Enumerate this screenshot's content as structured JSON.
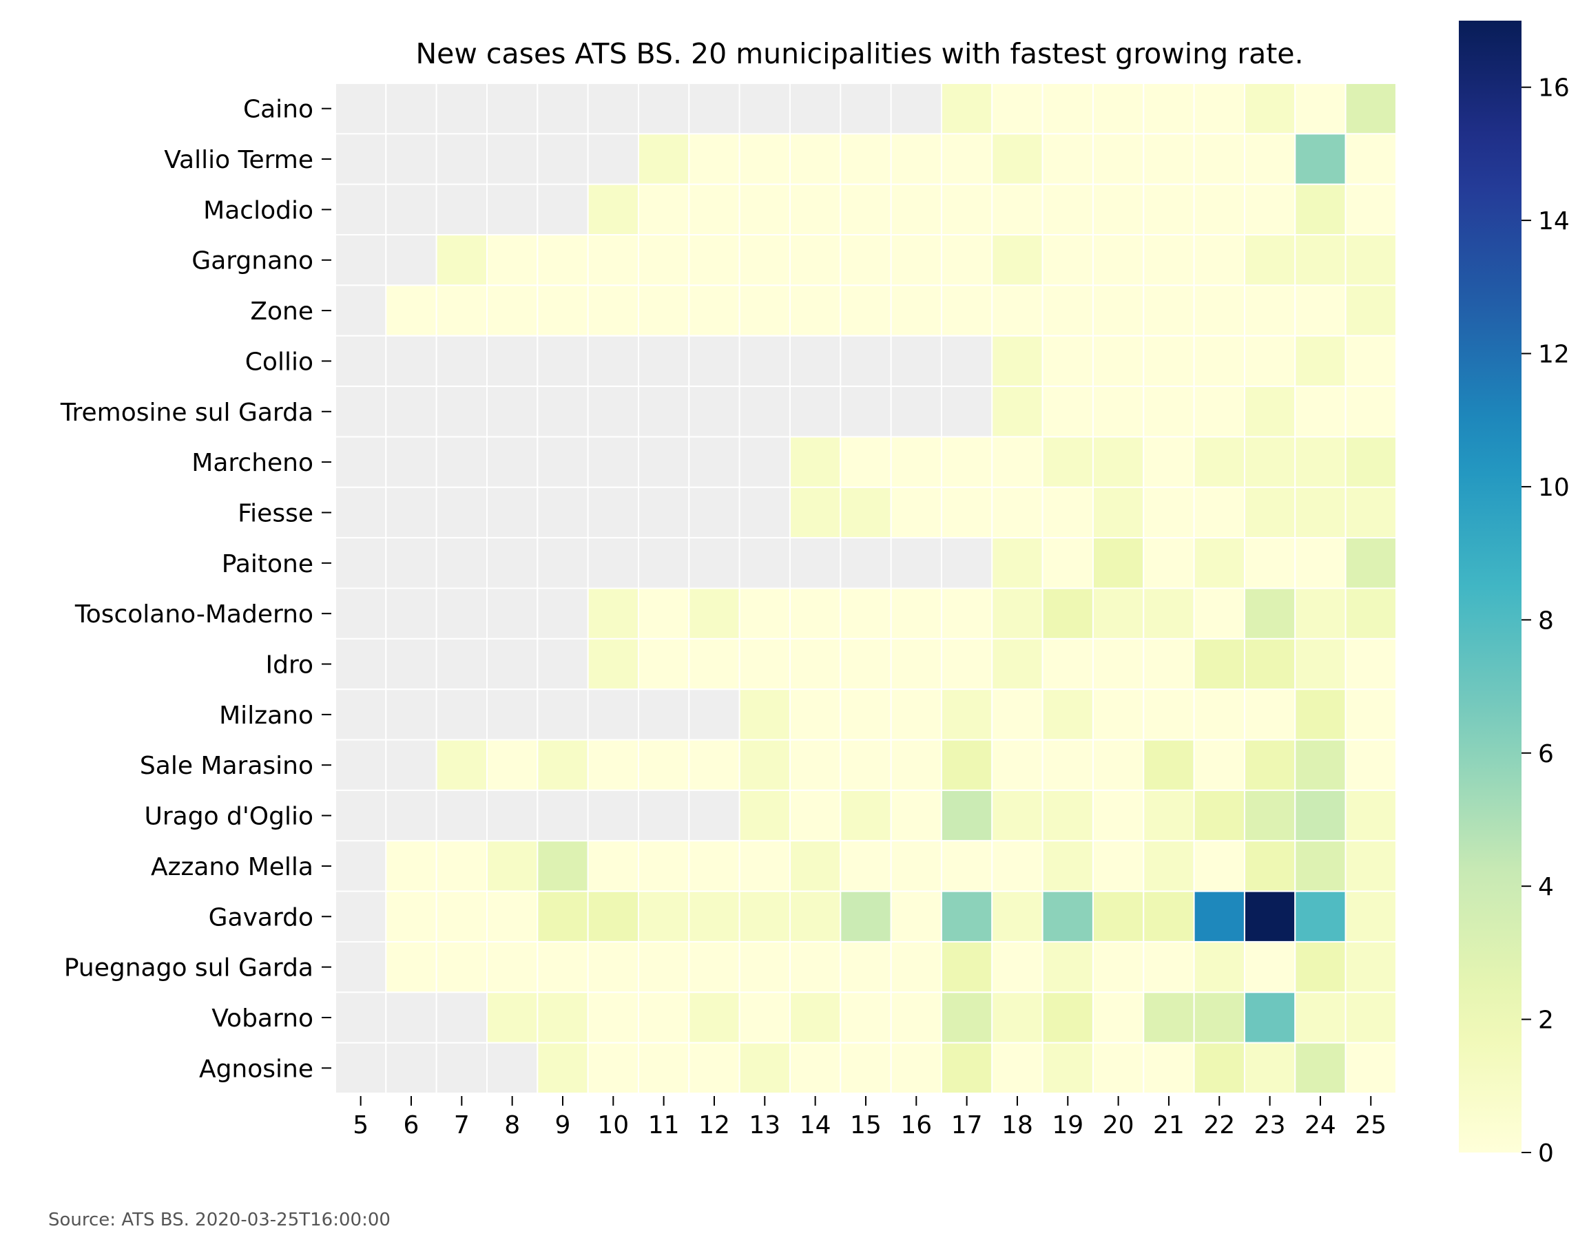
{
  "chart_data": {
    "type": "heatmap",
    "title": "New cases ATS BS. 20 municipalities with fastest growing rate.",
    "source": "Source: ATS BS. 2020-03-25T16:00:00",
    "x": [
      "5",
      "6",
      "7",
      "8",
      "9",
      "10",
      "11",
      "12",
      "13",
      "14",
      "15",
      "16",
      "17",
      "18",
      "19",
      "20",
      "21",
      "22",
      "23",
      "24",
      "25"
    ],
    "y": [
      "Caino",
      "Vallio Terme",
      "Maclodio",
      "Gargnano",
      "Zone",
      "Collio",
      "Tremosine sul Garda",
      "Marcheno",
      "Fiesse",
      "Paitone",
      "Toscolano-Maderno",
      "Idro",
      "Milzano",
      "Sale Marasino",
      "Urago d'Oglio",
      "Azzano Mella",
      "Gavardo",
      "Puegnago sul Garda",
      "Vobarno",
      "Agnosine"
    ],
    "values": [
      [
        null,
        null,
        null,
        null,
        null,
        null,
        null,
        null,
        null,
        null,
        null,
        null,
        1,
        0,
        0,
        0,
        0,
        0,
        1,
        0,
        3
      ],
      [
        null,
        null,
        null,
        null,
        null,
        null,
        1,
        0,
        0,
        0,
        0,
        0,
        0,
        1,
        0,
        0,
        0,
        0,
        0,
        6,
        0
      ],
      [
        null,
        null,
        null,
        null,
        null,
        1,
        0,
        0,
        0,
        0,
        0,
        0,
        0,
        0,
        0,
        0,
        0,
        0,
        0,
        1.5,
        0
      ],
      [
        null,
        null,
        1,
        0,
        0,
        0,
        0,
        0,
        0,
        0,
        0,
        0,
        0,
        1,
        0,
        0,
        0,
        0,
        1,
        1,
        1
      ],
      [
        null,
        0,
        0,
        0,
        0,
        0,
        0,
        0,
        0,
        0,
        0,
        0,
        0,
        0,
        0,
        0,
        0,
        0,
        0,
        0,
        1
      ],
      [
        null,
        null,
        null,
        null,
        null,
        null,
        null,
        null,
        null,
        null,
        null,
        null,
        null,
        1,
        0,
        0,
        0,
        0,
        0,
        1,
        0
      ],
      [
        null,
        null,
        null,
        null,
        null,
        null,
        null,
        null,
        null,
        null,
        null,
        null,
        null,
        1,
        0,
        0,
        0,
        0,
        1,
        0,
        0
      ],
      [
        null,
        null,
        null,
        null,
        null,
        null,
        null,
        null,
        null,
        1,
        0,
        0,
        0,
        0,
        1,
        1,
        0,
        1,
        1,
        1,
        1.5
      ],
      [
        null,
        null,
        null,
        null,
        null,
        null,
        null,
        null,
        null,
        1,
        1,
        0,
        0,
        0,
        0,
        1,
        0,
        0,
        1,
        1,
        1
      ],
      [
        null,
        null,
        null,
        null,
        null,
        null,
        null,
        null,
        null,
        null,
        null,
        null,
        null,
        1,
        0,
        2,
        0,
        1,
        0,
        0,
        3
      ],
      [
        null,
        null,
        null,
        null,
        null,
        1,
        0,
        1,
        0,
        0,
        0,
        0,
        0,
        1,
        2,
        1,
        1,
        0,
        3,
        1,
        1.5
      ],
      [
        null,
        null,
        null,
        null,
        null,
        1,
        0,
        0,
        0,
        0,
        0,
        0,
        0,
        1,
        0,
        0,
        0,
        2,
        2,
        1,
        0
      ],
      [
        null,
        null,
        null,
        null,
        null,
        null,
        null,
        null,
        1,
        0,
        0,
        0,
        1,
        0,
        1,
        0,
        0,
        0,
        0,
        2,
        0
      ],
      [
        null,
        null,
        1,
        0,
        1,
        0,
        0,
        0,
        1,
        0,
        0,
        0,
        2,
        0,
        0,
        0,
        2,
        0,
        2,
        3,
        0
      ],
      [
        null,
        null,
        null,
        null,
        null,
        null,
        null,
        null,
        1,
        0,
        1,
        0,
        4,
        1,
        1,
        0,
        1,
        2,
        3,
        4,
        1
      ],
      [
        null,
        0,
        0,
        1,
        3,
        0,
        0,
        0,
        0,
        1,
        0,
        0,
        0,
        0,
        1,
        0,
        1,
        0,
        2,
        3,
        1
      ],
      [
        null,
        0,
        0,
        0,
        2,
        2,
        1,
        1,
        1,
        1,
        4,
        0,
        6,
        1,
        6,
        2,
        2,
        11,
        17,
        8,
        1
      ],
      [
        null,
        0,
        0,
        0,
        0,
        0,
        0,
        0,
        0,
        0,
        0,
        0,
        2,
        0,
        1,
        0,
        0,
        1,
        0,
        2,
        1
      ],
      [
        null,
        null,
        null,
        1,
        1,
        0,
        0,
        1,
        0,
        1,
        0,
        0,
        3,
        1,
        2,
        0,
        3,
        3,
        7,
        1,
        1
      ],
      [
        null,
        null,
        null,
        null,
        1,
        0,
        0,
        0,
        1,
        0,
        0,
        0,
        2,
        0,
        1,
        0,
        0,
        2,
        1,
        3,
        0
      ]
    ],
    "colorbar": {
      "min": 0,
      "max": 17,
      "ticks": [
        0,
        2,
        4,
        6,
        8,
        10,
        12,
        14,
        16
      ],
      "colormap": "YlGnBu"
    },
    "missing_color": "#eeeeee"
  }
}
